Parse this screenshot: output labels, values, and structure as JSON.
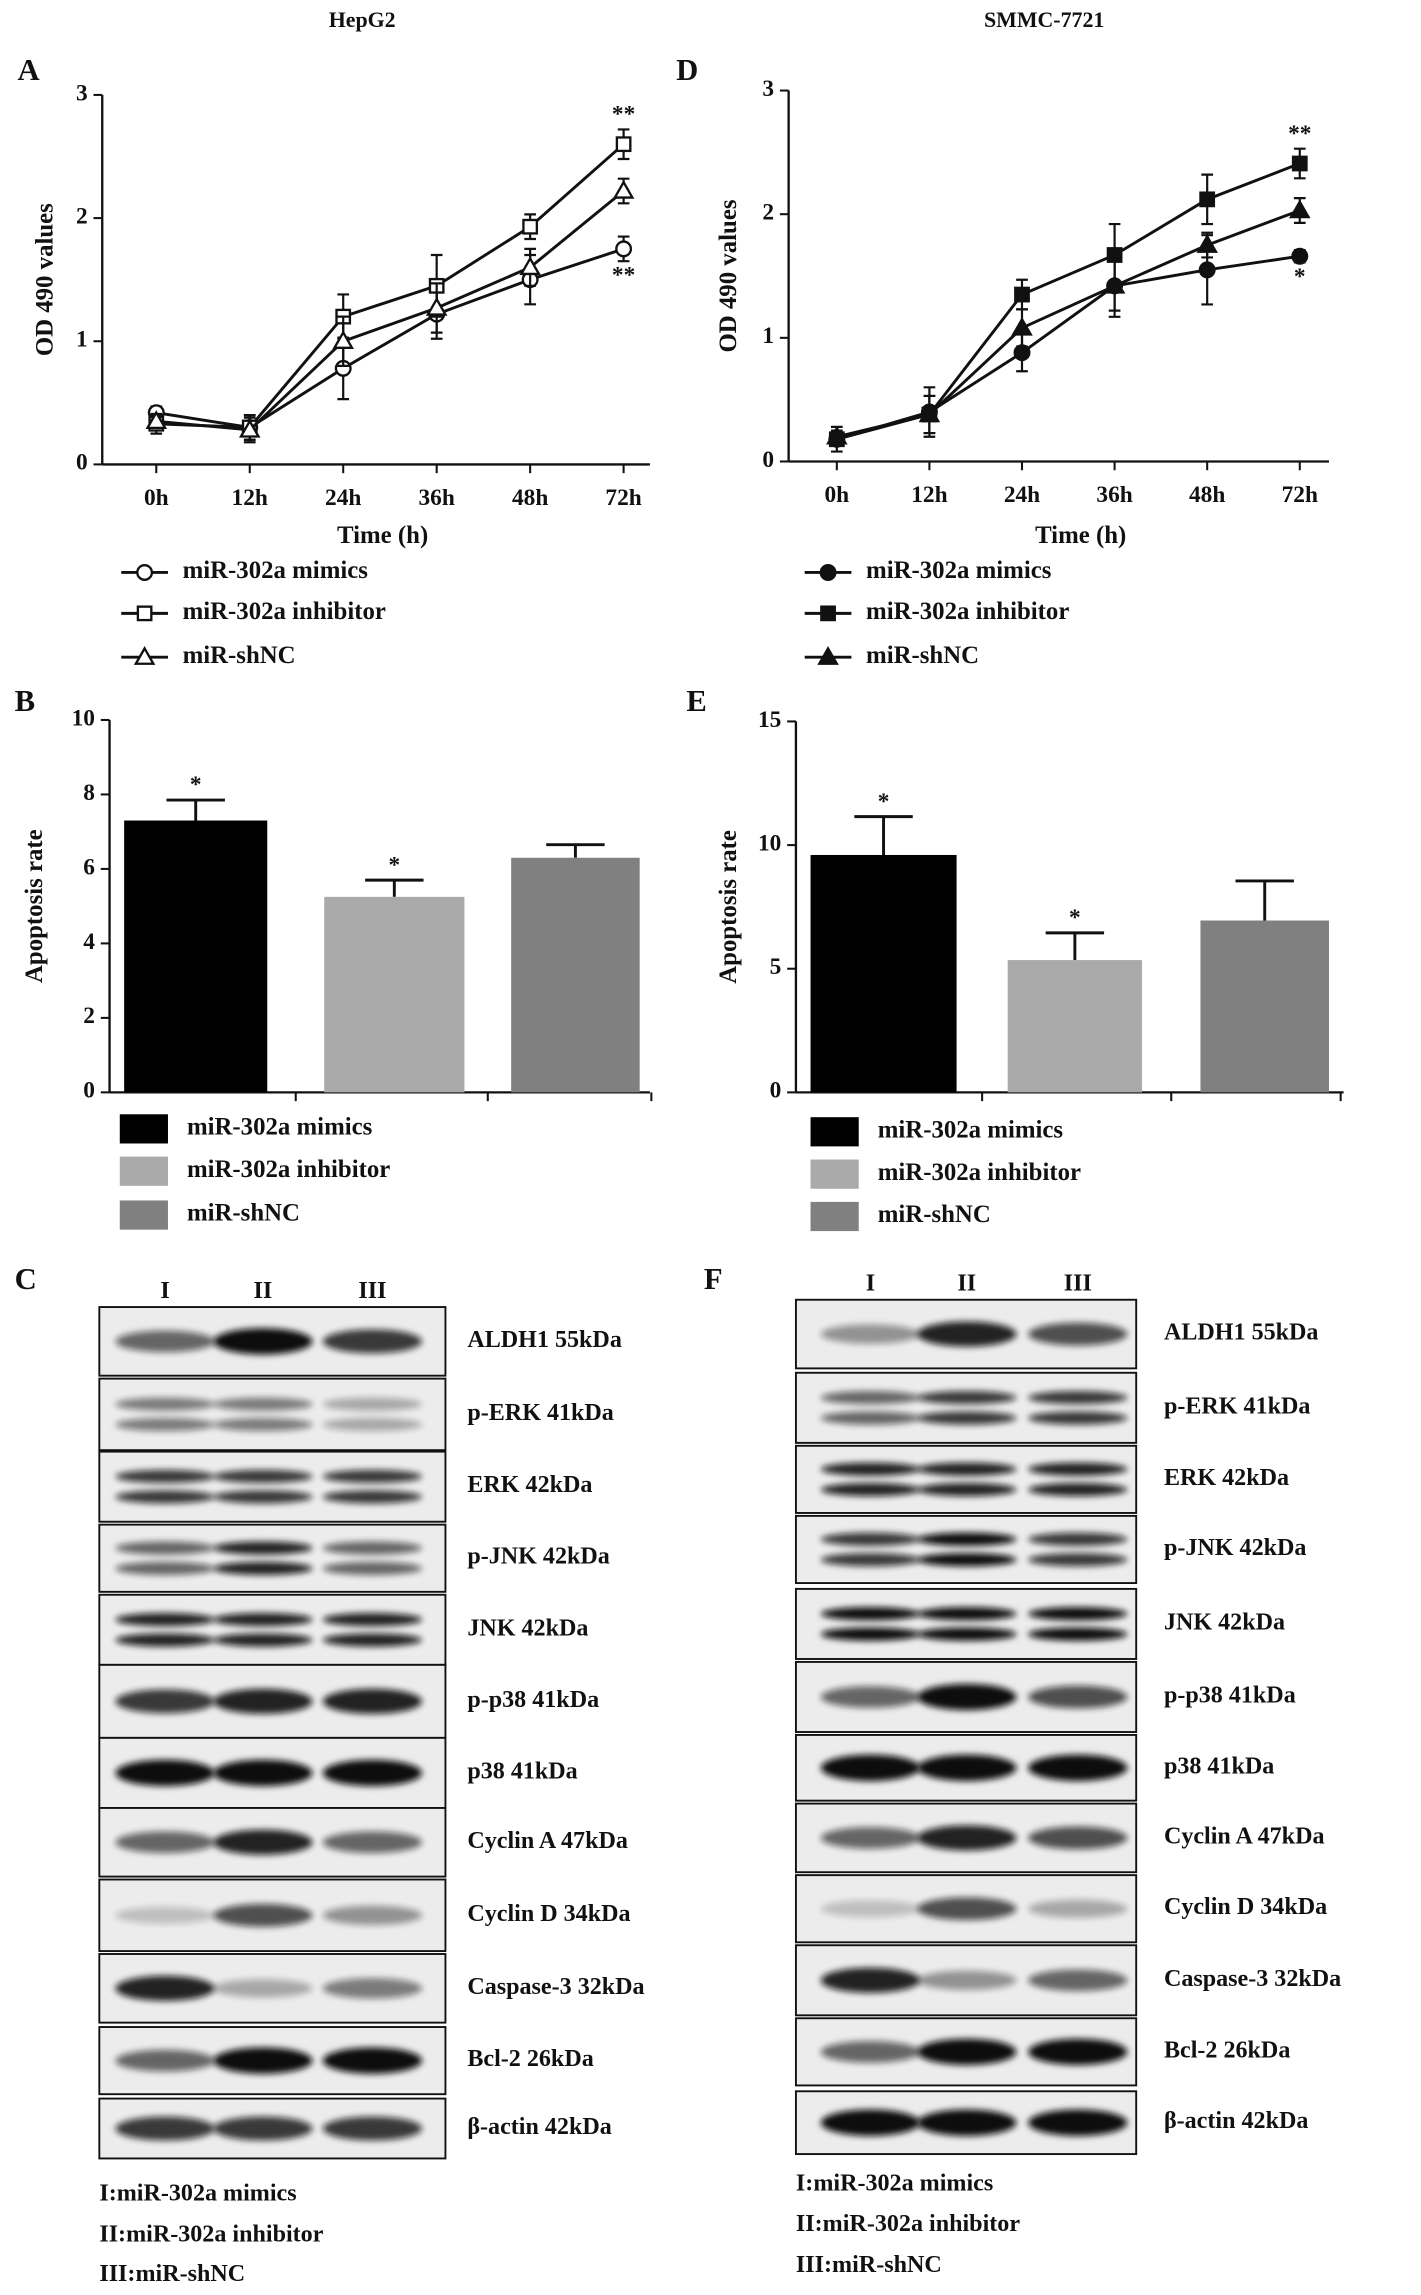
{
  "chart_data": [
    {
      "type": "line",
      "panel": "A",
      "title": "HepG2",
      "xlabel": "Time (h)",
      "ylabel": "OD 490 values",
      "categories": [
        "0h",
        "12h",
        "24h",
        "36h",
        "48h",
        "72h"
      ],
      "ylim": [
        0,
        3
      ],
      "yticks": [
        0,
        1,
        2,
        3
      ],
      "filled": false,
      "series": [
        {
          "name": "miR-302a mimics",
          "color": "#111111",
          "marker": "circle",
          "values": [
            0.42,
            0.3,
            0.78,
            1.22,
            1.5,
            1.75
          ],
          "errors": [
            0.05,
            0.1,
            0.25,
            0.2,
            0.2,
            0.1
          ],
          "annotations": [
            null,
            null,
            null,
            null,
            null,
            "**"
          ]
        },
        {
          "name": "miR-302a inhibitor",
          "color": "#111111",
          "marker": "square",
          "values": [
            0.33,
            0.3,
            1.2,
            1.45,
            1.93,
            2.6
          ],
          "errors": [
            0.08,
            0.1,
            0.18,
            0.25,
            0.1,
            0.12
          ],
          "annotations": [
            null,
            null,
            null,
            null,
            null,
            "**"
          ]
        },
        {
          "name": "miR-shNC",
          "color": "#111111",
          "marker": "triangle",
          "values": [
            0.35,
            0.28,
            1.0,
            1.27,
            1.6,
            2.22
          ],
          "errors": [
            0.05,
            0.1,
            0.2,
            0.2,
            0.15,
            0.1
          ],
          "annotations": [
            null,
            null,
            null,
            null,
            null,
            null
          ]
        }
      ]
    },
    {
      "type": "line",
      "panel": "D",
      "title": "SMMC-7721",
      "xlabel": "Time (h)",
      "ylabel": "OD 490 values",
      "categories": [
        "0h",
        "12h",
        "24h",
        "36h",
        "48h",
        "72h"
      ],
      "ylim": [
        0,
        3
      ],
      "yticks": [
        0,
        1,
        2,
        3
      ],
      "filled": true,
      "series": [
        {
          "name": "miR-302a mimics",
          "color": "#111111",
          "marker": "circle",
          "values": [
            0.18,
            0.4,
            0.88,
            1.42,
            1.55,
            1.66
          ],
          "errors": [
            0.05,
            0.2,
            0.15,
            0.25,
            0.28,
            0.05
          ],
          "annotations": [
            null,
            null,
            null,
            null,
            null,
            "*"
          ]
        },
        {
          "name": "miR-302a inhibitor",
          "color": "#111111",
          "marker": "square",
          "values": [
            0.18,
            0.38,
            1.35,
            1.67,
            2.12,
            2.41
          ],
          "errors": [
            0.1,
            0.15,
            0.12,
            0.25,
            0.2,
            0.12
          ],
          "annotations": [
            null,
            null,
            null,
            null,
            null,
            "**"
          ]
        },
        {
          "name": "miR-shNC",
          "color": "#111111",
          "marker": "triangle",
          "values": [
            0.2,
            0.38,
            1.08,
            1.42,
            1.75,
            2.03
          ],
          "errors": [
            0.05,
            0.15,
            0.15,
            0.2,
            0.1,
            0.1
          ],
          "annotations": [
            null,
            null,
            null,
            null,
            null,
            null
          ]
        }
      ]
    },
    {
      "type": "bar",
      "panel": "B",
      "ylabel": "Apoptosis rate",
      "categories": [
        "miR-302a mimics",
        "miR-302a inhibitor",
        "miR-shNC"
      ],
      "values": [
        7.3,
        5.25,
        6.3
      ],
      "errors": [
        0.55,
        0.45,
        0.35
      ],
      "colors": [
        "#000000",
        "#aaaaaa",
        "#808080"
      ],
      "annotations": [
        "*",
        "*",
        null
      ],
      "ylim": [
        0,
        10
      ],
      "yticks": [
        0,
        2,
        4,
        6,
        8,
        10
      ]
    },
    {
      "type": "bar",
      "panel": "E",
      "ylabel": "Apoptosis rate",
      "categories": [
        "miR-302a mimics",
        "miR-302a inhibitor",
        "miR-shNC"
      ],
      "values": [
        9.6,
        5.35,
        6.95
      ],
      "errors": [
        1.55,
        1.1,
        1.6
      ],
      "colors": [
        "#000000",
        "#aaaaaa",
        "#808080"
      ],
      "annotations": [
        "*",
        "*",
        null
      ],
      "ylim": [
        0,
        15
      ],
      "yticks": [
        0,
        5,
        10,
        15
      ]
    }
  ],
  "blots": [
    {
      "panel": "C",
      "lanes": [
        "I",
        "II",
        "III"
      ],
      "proteins": [
        "ALDH1 55kDa",
        "p-ERK 41kDa",
        "ERK 42kDa",
        "p-JNK 42kDa",
        "JNK 42kDa",
        "p-p38 41kDa",
        "p38 41kDa",
        "Cyclin A 47kDa",
        "Cyclin D 34kDa",
        "Caspase-3 32kDa",
        "Bcl-2 26kDa",
        "β-actin 42kDa"
      ],
      "key": [
        "I:miR-302a mimics",
        "II:miR-302a inhibitor",
        "III:miR-shNC"
      ]
    },
    {
      "panel": "F",
      "lanes": [
        "I",
        "II",
        "III"
      ],
      "proteins": [
        "ALDH1 55kDa",
        "p-ERK 41kDa",
        "ERK 42kDa",
        "p-JNK 42kDa",
        "JNK 42kDa",
        "p-p38 41kDa",
        "p38 41kDa",
        "Cyclin A 47kDa",
        "Cyclin D 34kDa",
        "Caspase-3 32kDa",
        "Bcl-2 26kDa",
        "β-actin 42kDa"
      ],
      "key": [
        "I:miR-302a mimics",
        "II:miR-302a inhibitor",
        "III:miR-shNC"
      ]
    }
  ]
}
